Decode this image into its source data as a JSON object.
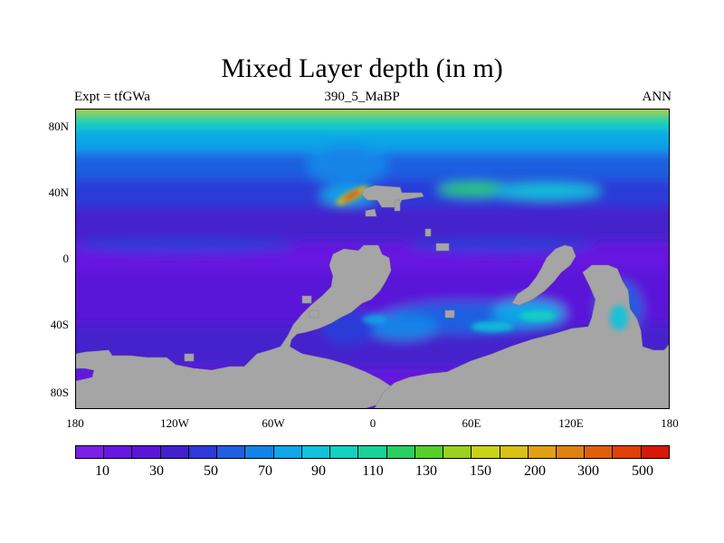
{
  "title": "Mixed Layer depth (in m)",
  "subtitle_left": "Expt = tfGWa",
  "subtitle_center": "390_5_MaBP",
  "subtitle_right": "ANN",
  "latitude_labels": [
    "80N",
    "40N",
    "0",
    "40S",
    "80S"
  ],
  "longitude_labels": [
    "180",
    "120W",
    "60W",
    "0",
    "60E",
    "120E",
    "180"
  ],
  "colorbar": {
    "labels": [
      "10",
      "30",
      "50",
      "70",
      "90",
      "110",
      "130",
      "150",
      "200",
      "300",
      "500"
    ],
    "colors": [
      "#7a1fe6",
      "#6617e0",
      "#5a16d8",
      "#4420cc",
      "#2b3ad8",
      "#1f5fe0",
      "#1483e8",
      "#10a6e8",
      "#10c3da",
      "#12d2c0",
      "#18d29a",
      "#2acf62",
      "#55d02a",
      "#9bd21e",
      "#c8d21a",
      "#d8c015",
      "#e0a012",
      "#e0800e",
      "#e0600a",
      "#e04008",
      "#d81806"
    ]
  },
  "land_color": "#a5a5a5"
}
